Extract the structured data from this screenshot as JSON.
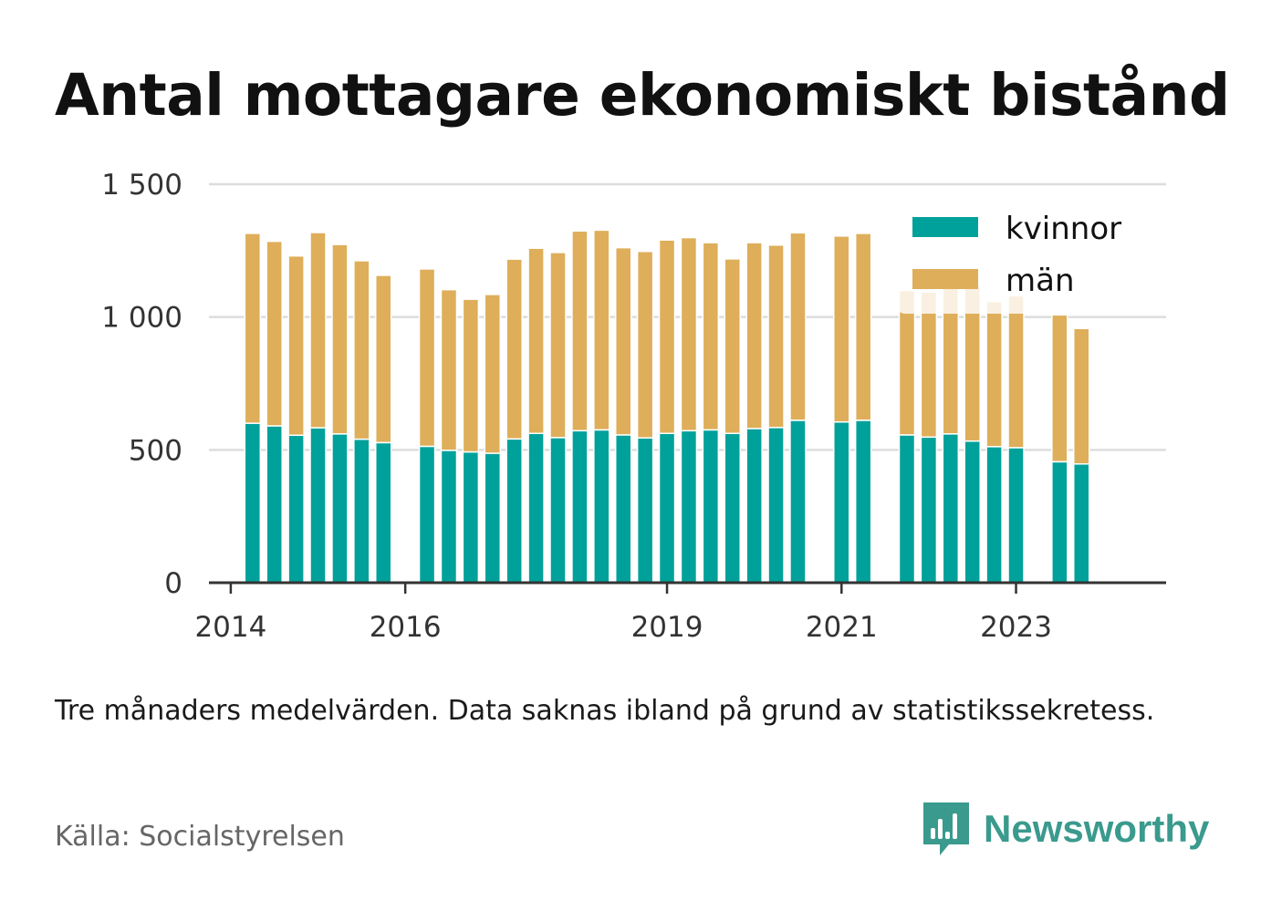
{
  "title": "Antal mottagare ekonomiskt bistånd",
  "note": "Tre månaders medelvärden. Data saknas ibland på grund av statistikssekretess.",
  "source": "Källa: Socialstyrelsen",
  "brand": {
    "name": "Newsworthy",
    "icon": "newsworthy-logo-icon",
    "color": "#3a9a8d"
  },
  "colors": {
    "kvinnor": "#00a19a",
    "man": "#deae5a",
    "grid": "#dddddd",
    "axis": "#333333"
  },
  "chart_data": {
    "type": "bar",
    "stacked": true,
    "title": "",
    "xlabel": "",
    "ylabel": "",
    "ylim": [
      0,
      1500
    ],
    "yticks": [
      0,
      500,
      1000,
      1500
    ],
    "ytick_labels": [
      "0",
      "500",
      "1 000",
      "1 500"
    ],
    "xticks": [
      {
        "label": "2014",
        "x": 2014.0
      },
      {
        "label": "2016",
        "x": 2016.0
      },
      {
        "label": "2019",
        "x": 2019.0
      },
      {
        "label": "2021",
        "x": 2021.0
      },
      {
        "label": "2023",
        "x": 2023.0
      }
    ],
    "grid": true,
    "legend_position": "top-right",
    "x": [
      2014.25,
      2014.5,
      2014.75,
      2015.0,
      2015.25,
      2015.5,
      2015.75,
      2016.25,
      2016.5,
      2016.75,
      2017.0,
      2017.25,
      2017.5,
      2017.75,
      2018.0,
      2018.25,
      2018.5,
      2018.75,
      2019.0,
      2019.25,
      2019.5,
      2019.75,
      2020.0,
      2020.25,
      2020.5,
      2021.0,
      2021.25,
      2021.75,
      2022.0,
      2022.25,
      2022.5,
      2022.75,
      2023.0,
      2023.5,
      2023.75
    ],
    "series": [
      {
        "name": "kvinnor",
        "color": "#00a19a",
        "values": [
          600,
          590,
          555,
          583,
          560,
          540,
          527,
          513,
          498,
          492,
          487,
          541,
          562,
          546,
          572,
          575,
          556,
          545,
          562,
          572,
          575,
          562,
          580,
          584,
          611,
          605,
          611,
          556,
          548,
          560,
          533,
          512,
          508,
          455,
          447
        ]
      },
      {
        "name": "män",
        "color": "#deae5a",
        "values": [
          715,
          695,
          675,
          735,
          713,
          672,
          630,
          668,
          605,
          575,
          598,
          677,
          697,
          697,
          752,
          752,
          705,
          702,
          728,
          727,
          705,
          657,
          700,
          687,
          706,
          700,
          704,
          544,
          546,
          609,
          584,
          546,
          572,
          553,
          510
        ]
      }
    ]
  }
}
